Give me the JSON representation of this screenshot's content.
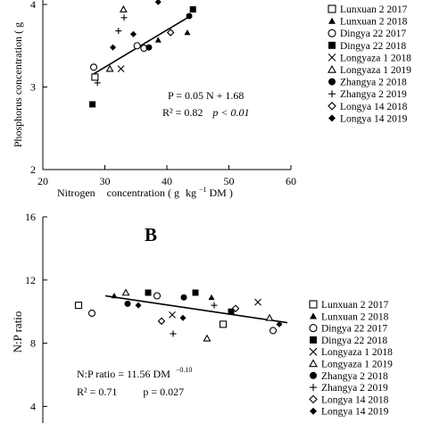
{
  "chart_data": [
    {
      "type": "scatter",
      "panel_label": "",
      "xlabel": "Nitrogen concentration ( g kg⁻¹ DM )",
      "xlabel_parts": [
        "Nitrogen",
        "concentration ( g",
        "kg",
        "−1",
        " DM )"
      ],
      "ylabel": "Phosphorus concentration ( g",
      "xlim": [
        20,
        60
      ],
      "ylim": [
        2,
        4
      ],
      "xticks": [
        "20",
        "30",
        "40",
        "50",
        "60"
      ],
      "yticks": [
        "2",
        "3",
        "4"
      ],
      "equation": "P = 0.05 N + 1.68",
      "stats": {
        "r2": "R² = 0.82",
        "p": "p < 0.01"
      },
      "fit": {
        "x": [
          28,
          44
        ],
        "y": [
          3.15,
          3.87
        ]
      },
      "series": [
        {
          "name": "Lunxuan 2 2017",
          "marker": "square-open",
          "points": [
            [
              28.4,
              3.12
            ]
          ]
        },
        {
          "name": "Lunxuan 2 2018",
          "marker": "triangle-filled",
          "points": [
            [
              43.3,
              3.66
            ],
            [
              38.6,
              3.57
            ]
          ]
        },
        {
          "name": "Dingya 22 2017",
          "marker": "circle-open",
          "points": [
            [
              28.2,
              3.24
            ],
            [
              35.2,
              3.5
            ],
            [
              36.3,
              3.47
            ]
          ]
        },
        {
          "name": "Dingya 22 2018",
          "marker": "square-filled",
          "points": [
            [
              28.0,
              2.79
            ],
            [
              44.2,
              3.94
            ]
          ]
        },
        {
          "name": "Longyaza 1 2018",
          "marker": "x",
          "points": [
            [
              32.6,
              3.22
            ]
          ]
        },
        {
          "name": "Longyaza 1 2019",
          "marker": "triangle-open",
          "points": [
            [
              30.8,
              3.22
            ],
            [
              33.0,
              3.94
            ]
          ]
        },
        {
          "name": "Zhangya 2 2018",
          "marker": "circle-filled",
          "points": [
            [
              37.1,
              3.48
            ],
            [
              43.6,
              3.86
            ]
          ]
        },
        {
          "name": "Zhangya 2 2019",
          "marker": "plus",
          "points": [
            [
              28.8,
              3.05
            ],
            [
              32.2,
              3.68
            ],
            [
              33.1,
              3.84
            ]
          ]
        },
        {
          "name": "Longya 14 2018",
          "marker": "diamond-open",
          "points": [
            [
              40.6,
              3.66
            ]
          ]
        },
        {
          "name": "Longya 14 2019",
          "marker": "diamond-filled",
          "points": [
            [
              31.3,
              3.48
            ],
            [
              34.6,
              3.64
            ],
            [
              38.6,
              4.03
            ]
          ]
        }
      ]
    },
    {
      "type": "scatter",
      "panel_label": "B",
      "xlabel": "",
      "ylabel": "N:P ratio",
      "ylim": [
        4,
        16
      ],
      "yticks": [
        "4",
        "8",
        "12",
        "16"
      ],
      "equation_main": "N:P ratio = 11.56 DM",
      "equation_exp": "−0.10",
      "stats": {
        "r2": "R² = 0.71",
        "p": "p = 0.027"
      },
      "fit_y": [
        11.0,
        9.3
      ],
      "series": [
        {
          "name": "Lunxuan 2 2017",
          "marker": "square-open",
          "points_y": [
            10.4,
            9.2
          ]
        },
        {
          "name": "Lunxuan 2 2018",
          "marker": "triangle-filled",
          "points_y": [
            11.0,
            10.9
          ]
        },
        {
          "name": "Dingya 22 2017",
          "marker": "circle-open",
          "points_y": [
            9.9,
            11.0,
            8.8
          ]
        },
        {
          "name": "Dingya 22 2018",
          "marker": "square-filled",
          "points_y": [
            11.2,
            11.2,
            10.0
          ]
        },
        {
          "name": "Longyaza 1 2018",
          "marker": "x",
          "points_y": [
            9.8,
            10.6
          ]
        },
        {
          "name": "Longyaza 1 2019",
          "marker": "triangle-open",
          "points_y": [
            11.2,
            8.3,
            9.6
          ]
        },
        {
          "name": "Zhangya 2 2018",
          "marker": "circle-filled",
          "points_y": [
            10.5,
            10.9
          ]
        },
        {
          "name": "Zhangya 2 2019",
          "marker": "plus",
          "points_y": [
            8.6,
            10.4
          ]
        },
        {
          "name": "Longya 14 2018",
          "marker": "diamond-open",
          "points_y": [
            9.4,
            10.2
          ]
        },
        {
          "name": "Longya 14 2019",
          "marker": "diamond-filled",
          "points_y": [
            10.4,
            9.6,
            9.2
          ]
        }
      ]
    }
  ]
}
